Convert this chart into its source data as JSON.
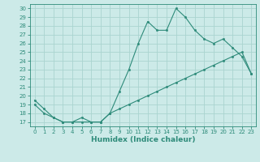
{
  "xlabel": "Humidex (Indice chaleur)",
  "xlim": [
    -0.5,
    23.5
  ],
  "ylim": [
    16.5,
    30.5
  ],
  "yticks": [
    17,
    18,
    19,
    20,
    21,
    22,
    23,
    24,
    25,
    26,
    27,
    28,
    29,
    30
  ],
  "xticks": [
    0,
    1,
    2,
    3,
    4,
    5,
    6,
    7,
    8,
    9,
    10,
    11,
    12,
    13,
    14,
    15,
    16,
    17,
    18,
    19,
    20,
    21,
    22,
    23
  ],
  "line1_x": [
    0,
    1,
    2,
    3,
    4,
    5,
    6,
    7,
    8,
    9,
    10,
    11,
    12,
    13,
    14,
    15,
    16,
    17,
    18,
    19,
    20,
    21,
    22,
    23
  ],
  "line1_y": [
    19.5,
    18.5,
    17.5,
    17.0,
    17.0,
    17.0,
    17.0,
    17.0,
    18.0,
    20.5,
    23.0,
    26.0,
    28.5,
    27.5,
    27.5,
    30.0,
    29.0,
    27.5,
    26.5,
    26.0,
    26.5,
    25.5,
    24.5,
    22.5
  ],
  "line2_x": [
    0,
    1,
    2,
    3,
    4,
    5,
    6,
    7,
    8,
    9,
    10,
    11,
    12,
    13,
    14,
    15,
    16,
    17,
    18,
    19,
    20,
    21,
    22,
    23
  ],
  "line2_y": [
    19.0,
    18.0,
    17.5,
    17.0,
    17.0,
    17.5,
    17.0,
    17.0,
    18.0,
    18.5,
    19.0,
    19.5,
    20.0,
    20.5,
    21.0,
    21.5,
    22.0,
    22.5,
    23.0,
    23.5,
    24.0,
    24.5,
    25.0,
    22.5
  ],
  "line_color": "#2e8b7a",
  "bg_color": "#cceae8",
  "grid_color": "#aad4d0",
  "tick_label_fontsize": 5.0,
  "xlabel_fontsize": 6.5
}
